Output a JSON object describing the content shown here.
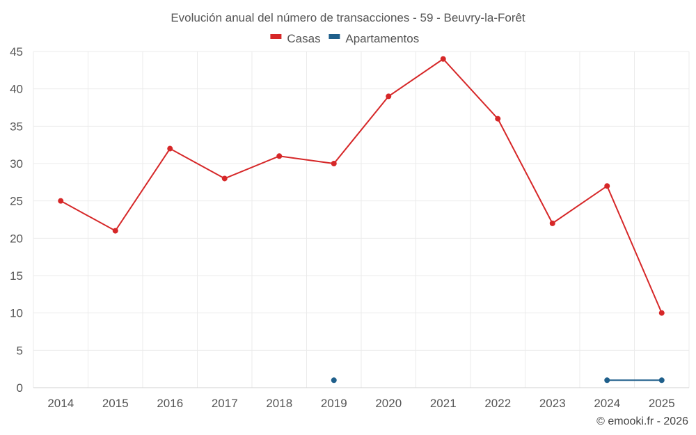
{
  "chart_data": {
    "type": "line",
    "title": "Evolución anual del número de transacciones - 59 - Beuvry-la-Forêt",
    "xlabel": "",
    "ylabel": "",
    "categories": [
      "2014",
      "2015",
      "2016",
      "2017",
      "2018",
      "2019",
      "2020",
      "2021",
      "2022",
      "2023",
      "2024",
      "2025"
    ],
    "ylim": [
      0,
      45
    ],
    "yticks": [
      "0",
      "5",
      "10",
      "15",
      "20",
      "25",
      "30",
      "35",
      "40",
      "45"
    ],
    "grid": true,
    "legend_position": "top-center",
    "series": [
      {
        "name": "Casas",
        "color": "#d62728",
        "values": [
          25,
          21,
          32,
          28,
          31,
          30,
          39,
          44,
          36,
          22,
          27,
          10
        ]
      },
      {
        "name": "Apartamentos",
        "color": "#1f5f8b",
        "values": [
          null,
          null,
          null,
          null,
          null,
          1,
          null,
          null,
          null,
          null,
          1,
          1
        ]
      }
    ]
  },
  "credit": "© emooki.fr - 2026"
}
